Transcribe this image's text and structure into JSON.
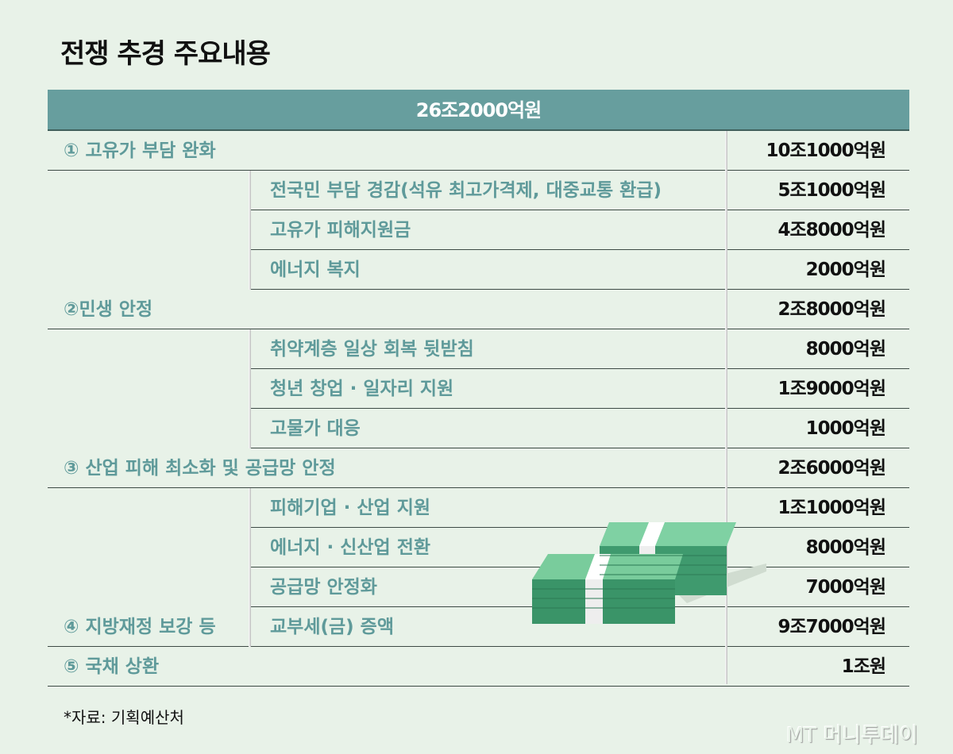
{
  "title": "전쟁 추경 주요내용",
  "total": "26조2000억원",
  "rows": [
    {
      "type": "section",
      "label": "① 고유가 부담 완화",
      "value": "10조1000억원"
    },
    {
      "type": "sub",
      "label": "전국민 부담 경감(석유 최고가격제, 대중교통 환급)",
      "value": "5조1000억원"
    },
    {
      "type": "sub",
      "label": "고유가 피해지원금",
      "value": "4조8000억원"
    },
    {
      "type": "sub",
      "label": "에너지 복지",
      "value": "2000억원"
    },
    {
      "type": "section",
      "label": "②민생 안정",
      "value": "2조8000억원"
    },
    {
      "type": "sub",
      "label": "취약계층 일상 회복 뒷받침",
      "value": "8000억원"
    },
    {
      "type": "sub",
      "label": "청년 창업 · 일자리 지원",
      "value": "1조9000억원"
    },
    {
      "type": "sub",
      "label": "고물가 대응",
      "value": "1000억원"
    },
    {
      "type": "section",
      "label": "③ 산업 피해 최소화 및 공급망 안정",
      "value": "2조6000억원"
    },
    {
      "type": "sub",
      "label": "피해기업 · 산업 지원",
      "value": "1조1000억원"
    },
    {
      "type": "sub",
      "label": "에너지 · 신산업 전환",
      "value": "8000억원"
    },
    {
      "type": "sub",
      "label": "공급망 안정화",
      "value": "7000억원"
    },
    {
      "type": "section",
      "label": "④ 지방재정 보강 등",
      "sublabel": "교부세(금) 증액",
      "value": "9조7000억원"
    },
    {
      "type": "section",
      "label": "⑤ 국채 상환",
      "value": "1조원"
    }
  ],
  "source": "*자료: 기획예산처",
  "logo": "MT 머니투데이",
  "colors": {
    "header": "#679e9e",
    "label": "#5f9a9a",
    "background": "#e8f2e8"
  }
}
